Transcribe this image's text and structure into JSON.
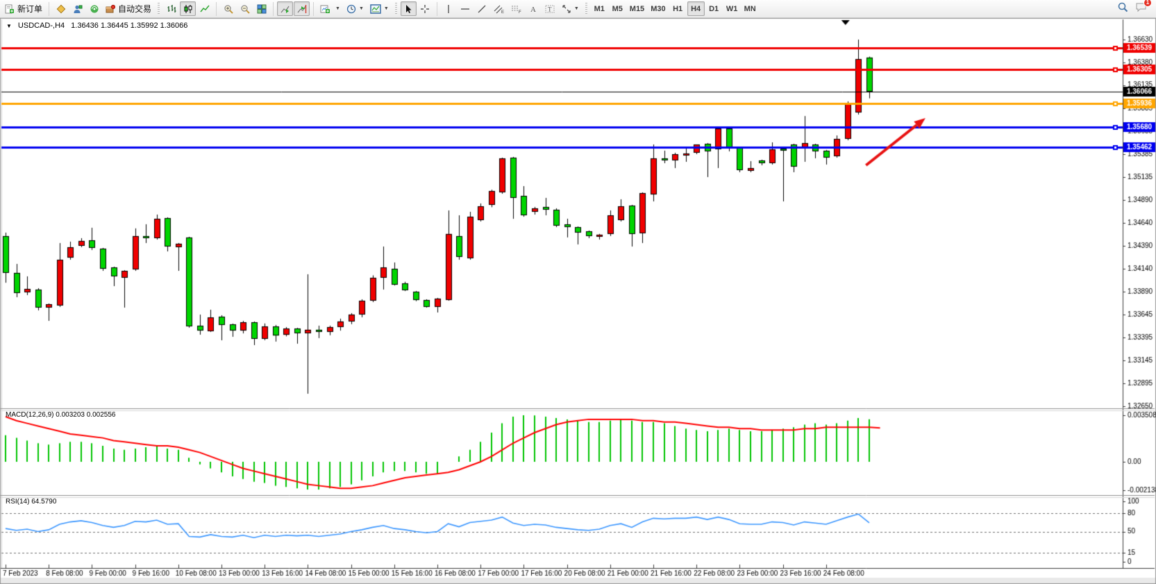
{
  "toolbar": {
    "new_order_label": "新订单",
    "autotrading_label": "自动交易",
    "timeframes": [
      "M1",
      "M5",
      "M15",
      "M30",
      "H1",
      "H4",
      "D1",
      "W1",
      "MN"
    ],
    "active_timeframe": "H4",
    "notification_count": "1",
    "icon_names": [
      "new-order-icon",
      "market-watch-icon",
      "profile-icon",
      "signals-icon",
      "autotrading-icon",
      "bar-chart-icon",
      "candlestick-chart-icon",
      "line-chart-icon",
      "zoom-in-icon",
      "zoom-out-icon",
      "tile-windows-icon",
      "auto-scroll-icon",
      "chart-shift-icon",
      "new-chart-icon",
      "periods-icon",
      "templates-icon",
      "cursor-icon",
      "crosshair-icon",
      "vertical-line-icon",
      "horizontal-line-icon",
      "trendline-icon",
      "channel-icon",
      "fibonacci-icon",
      "text-icon",
      "label-icon",
      "arrows-icon",
      "search-icon",
      "chat-icon"
    ]
  },
  "chart": {
    "title": "USDCAD-,H4",
    "ohlc_text": "1.36436 1.36445 1.35992 1.36066"
  },
  "macd": {
    "header": "MACD(12,26,9) 0.003203 0.002556"
  },
  "rsi": {
    "header": "RSI(14) 64.5790"
  },
  "chart_data": {
    "type": "candlestick",
    "symbol": "USDCAD-",
    "timeframe": "H4",
    "title": "USDCAD-,H4 1.36436 1.36445 1.35992 1.36066",
    "current_bar": {
      "open": 1.36436,
      "high": 1.36445,
      "low": 1.35992,
      "close": 1.36066
    },
    "ylim": [
      1.32634,
      1.36728
    ],
    "price_ticks": [
      1.3663,
      1.3638,
      1.36135,
      1.35885,
      1.35635,
      1.35385,
      1.35135,
      1.3489,
      1.3464,
      1.3439,
      1.3414,
      1.3389,
      1.33645,
      1.33395,
      1.33145,
      1.32895,
      1.3265
    ],
    "x_labels": [
      "7 Feb 2023",
      "8 Feb 08:00",
      "9 Feb 00:00",
      "9 Feb 16:00",
      "10 Feb 08:00",
      "13 Feb 00:00",
      "13 Feb 16:00",
      "14 Feb 08:00",
      "15 Feb 00:00",
      "15 Feb 16:00",
      "16 Feb 08:00",
      "17 Feb 00:00",
      "17 Feb 16:00",
      "20 Feb 08:00",
      "21 Feb 00:00",
      "21 Feb 16:00",
      "22 Feb 08:00",
      "23 Feb 00:00",
      "23 Feb 16:00",
      "24 Feb 08:00"
    ],
    "b极ars_per_label": 4,
    "bars_per_label": 4,
    "colors": {
      "bull": "#f00000",
      "bear": "#00d500",
      "outline": "#000000",
      "macd_hist": "#00c400",
      "macd_signal": "#ff0000",
      "rsi_line": "#3a96ff",
      "arrow": "#e81212"
    },
    "hlines": [
      {
        "price": 1.36539,
        "color": "#f00000",
        "width": 3,
        "current": false
      },
      {
        "price": 1.36305,
        "color": "#f00000",
        "width": 3,
        "current": false
      },
      {
        "price": 1.36066,
        "color": "#000000",
        "width": 1,
        "current": true
      },
      {
        "price": 1.35936,
        "color": "#ffa500",
        "width": 3,
        "current": false
      },
      {
        "price": 1.3568,
        "color": "#0000f0",
        "width": 3,
        "current": false
      },
      {
        "price": 1.35462,
        "color": "#0000f0",
        "width": 3,
        "current": false
      }
    ],
    "shift_marker_bar": 77.8,
    "arrow_annotation": {
      "x1_bar": 79.7,
      "y1_price": 1.35265,
      "x2_bar": 85.2,
      "y2_price": 1.35778
    },
    "candles": [
      [
        1.34497,
        1.34534,
        1.3399,
        1.34097
      ],
      [
        1.34097,
        1.34194,
        1.33833,
        1.33878
      ],
      [
        1.33886,
        1.34059,
        1.33856,
        1.33923
      ],
      [
        1.33916,
        1.33931,
        1.3369,
        1.3372
      ],
      [
        1.3372,
        1.33765,
        1.33576,
        1.33757
      ],
      [
        1.33742,
        1.34421,
        1.33727,
        1.3424
      ],
      [
        1.34262,
        1.34436,
        1.3424,
        1.34376
      ],
      [
        1.34391,
        1.34474,
        1.34376,
        1.34444
      ],
      [
        1.34451,
        1.34587,
        1.34345,
        1.34368
      ],
      [
        1.3436,
        1.34368,
        1.34119,
        1.34141
      ],
      [
        1.34156,
        1.34164,
        1.33953,
        1.34059
      ],
      [
        1.34044,
        1.34126,
        1.3372,
        1.34119
      ],
      [
        1.34134,
        1.3458,
        1.34119,
        1.34497
      ],
      [
        1.34497,
        1.34625,
        1.34421,
        1.34474
      ],
      [
        1.34474,
        1.3473,
        1.34459,
        1.34684
      ],
      [
        1.34692,
        1.347,
        1.3433,
        1.34383
      ],
      [
        1.34376,
        1.34421,
        1.34119,
        1.34414
      ],
      [
        1.34482,
        1.34489,
        1.33502,
        1.33517
      ],
      [
        1.33524,
        1.33644,
        1.33426,
        1.3347
      ],
      [
        1.33463,
        1.33697,
        1.33456,
        1.33614
      ],
      [
        1.33622,
        1.33637,
        1.33365,
        1.33531
      ],
      [
        1.33539,
        1.33546,
        1.33403,
        1.3347
      ],
      [
        1.3347,
        1.33576,
        1.3344,
        1.33561
      ],
      [
        1.33561,
        1.33569,
        1.33313,
        1.33381
      ],
      [
        1.33381,
        1.33548,
        1.33366,
        1.33513
      ],
      [
        1.33513,
        1.33531,
        1.33351,
        1.33416
      ],
      [
        1.33424,
        1.33508,
        1.33408,
        1.33492
      ],
      [
        1.33492,
        1.335,
        1.33328,
        1.33441
      ],
      [
        1.33445,
        1.34082,
        1.32785,
        1.3348
      ],
      [
        1.3348,
        1.33524,
        1.33389,
        1.33456
      ],
      [
        1.33456,
        1.33524,
        1.3342,
        1.33509
      ],
      [
        1.33509,
        1.336,
        1.3347,
        1.3357
      ],
      [
        1.3357,
        1.3366,
        1.3354,
        1.33645
      ],
      [
        1.33645,
        1.3381,
        1.33615,
        1.33795
      ],
      [
        1.33795,
        1.3407,
        1.3378,
        1.34044
      ],
      [
        1.34044,
        1.34383,
        1.33916,
        1.34157
      ],
      [
        1.34141,
        1.3421,
        1.3396,
        1.33968
      ],
      [
        1.33984,
        1.34,
        1.339,
        1.33908
      ],
      [
        1.33893,
        1.339,
        1.3379,
        1.33802
      ],
      [
        1.33802,
        1.3381,
        1.3372,
        1.33727
      ],
      [
        1.33727,
        1.33825,
        1.33667,
        1.33818
      ],
      [
        1.33802,
        1.34775,
        1.33795,
        1.3452
      ],
      [
        1.34497,
        1.34722,
        1.3424,
        1.3427
      ],
      [
        1.34255,
        1.3476,
        1.3424,
        1.34707
      ],
      [
        1.3467,
        1.34851,
        1.34655,
        1.3482
      ],
      [
        1.34835,
        1.35,
        1.3481,
        1.34986
      ],
      [
        1.34971,
        1.35348,
        1.34956,
        1.35341
      ],
      [
        1.35348,
        1.35356,
        1.34684,
        1.34911
      ],
      [
        1.34933,
        1.35039,
        1.34707,
        1.34722
      ],
      [
        1.3476,
        1.34813,
        1.3473,
        1.34798
      ],
      [
        1.34813,
        1.34911,
        1.34722,
        1.34783
      ],
      [
        1.34783,
        1.34798,
        1.34594,
        1.34609
      ],
      [
        1.34624,
        1.34685,
        1.34482,
        1.34594
      ],
      [
        1.34594,
        1.34601,
        1.34406,
        1.34534
      ],
      [
        1.34549,
        1.34557,
        1.34474,
        1.34497
      ],
      [
        1.34489,
        1.3452,
        1.34459,
        1.34512
      ],
      [
        1.34519,
        1.34775,
        1.34497,
        1.34722
      ],
      [
        1.3467,
        1.34896,
        1.34655,
        1.3482
      ],
      [
        1.34828,
        1.34835,
        1.34383,
        1.34519
      ],
      [
        1.34527,
        1.34971,
        1.34421,
        1.34963
      ],
      [
        1.34948,
        1.35491,
        1.34873,
        1.35341
      ],
      [
        1.35341,
        1.35424,
        1.35288,
        1.35318
      ],
      [
        1.35318,
        1.35401,
        1.35235,
        1.35386
      ],
      [
        1.35371,
        1.35461,
        1.35303,
        1.35394
      ],
      [
        1.35401,
        1.35484,
        1.35386,
        1.35491
      ],
      [
        1.35499,
        1.35506,
        1.35137,
        1.35416
      ],
      [
        1.35439,
        1.35672,
        1.35235,
        1.35665
      ],
      [
        1.35665,
        1.35672,
        1.35416,
        1.35461
      ],
      [
        1.35454,
        1.35461,
        1.3519,
        1.35213
      ],
      [
        1.35205,
        1.3531,
        1.3519,
        1.35235
      ],
      [
        1.35318,
        1.35326,
        1.35265,
        1.35288
      ],
      [
        1.35288,
        1.35514,
        1.35273,
        1.35439
      ],
      [
        1.35446,
        1.35469,
        1.34873,
        1.35424
      ],
      [
        1.35491,
        1.35499,
        1.3519,
        1.3525
      ],
      [
        1.35454,
        1.358,
        1.35303,
        1.35506
      ],
      [
        1.35491,
        1.35499,
        1.35341,
        1.35416
      ],
      [
        1.35423,
        1.35431,
        1.35273,
        1.35348
      ],
      [
        1.35363,
        1.35589,
        1.35348,
        1.35552
      ],
      [
        1.35552,
        1.35959,
        1.35537,
        1.35929
      ],
      [
        1.35838,
        1.3663,
        1.35816,
        1.36419
      ],
      [
        1.36436,
        1.36445,
        1.35992,
        1.36066
      ]
    ],
    "macd": {
      "name": "MACD(12,26,9)",
      "value_main": 0.003203,
      "value_signal": 0.002556,
      "unit": 0.0001,
      "axis_ticks": [
        {
          "v": 0.003508,
          "label": "0.003508"
        },
        {
          "v": 0,
          "label": "0.00"
        },
        {
          "v": -0.002138,
          "label": "-0.002138"
        }
      ],
      "histogram": [
        20,
        18,
        16,
        14,
        13,
        14,
        15,
        15,
        14,
        12,
        10,
        9,
        10,
        11,
        12,
        10,
        9,
        3,
        -2,
        -5,
        -8,
        -11,
        -13,
        -15,
        -16,
        -18,
        -19,
        -20,
        -21,
        -21,
        -20,
        -19,
        -17,
        -14,
        -11,
        -8,
        -7,
        -7,
        -8,
        -9,
        -9,
        0,
        4,
        9,
        15,
        22,
        29,
        34,
        35.08,
        35,
        34,
        33,
        32,
        31,
        30,
        30,
        31,
        32,
        31,
        30,
        30,
        29,
        27,
        25,
        24,
        23,
        24,
        25,
        24,
        23,
        23,
        24,
        25,
        26,
        28,
        29,
        28,
        29,
        31,
        33,
        32.03
      ],
      "signal": [
        34,
        31,
        29,
        27,
        25,
        23,
        21,
        20,
        19,
        18,
        16,
        15,
        14,
        13,
        12,
        12,
        11,
        9,
        7,
        4,
        1,
        -2,
        -5,
        -7,
        -9,
        -11,
        -13,
        -15,
        -17,
        -18,
        -19,
        -20,
        -20,
        -19,
        -18,
        -16,
        -14,
        -12,
        -11,
        -10,
        -9,
        -8,
        -6,
        -3,
        0,
        4,
        9,
        14,
        18,
        22,
        25,
        28,
        30,
        31,
        32,
        32,
        32,
        32,
        32,
        31,
        31,
        30,
        30,
        29,
        28,
        27,
        26,
        26,
        25,
        25,
        24,
        24,
        24,
        24,
        25,
        25,
        26,
        26,
        26,
        26,
        26,
        25.56
      ]
    },
    "rsi": {
      "name": "RSI(14)",
      "value": 64.579,
      "levels": [
        100,
        80,
        50,
        15,
        0
      ],
      "dashed_levels": [
        80,
        50,
        15
      ],
      "values": [
        55,
        52,
        54,
        50,
        53,
        62,
        66,
        68,
        65,
        60,
        57,
        60,
        67,
        66,
        69,
        62,
        63,
        42,
        41,
        45,
        42,
        41,
        44,
        40,
        44,
        42,
        44,
        43,
        44,
        42,
        44,
        46,
        50,
        53,
        57,
        60,
        55,
        53,
        50,
        48,
        50,
        63,
        58,
        65,
        67,
        69,
        74,
        64,
        60,
        62,
        61,
        57,
        55,
        53,
        52,
        54,
        60,
        63,
        57,
        66,
        72,
        71,
        72,
        72,
        74,
        70,
        74,
        70,
        63,
        62,
        62,
        66,
        65,
        61,
        66,
        64,
        62,
        68,
        74,
        79,
        64.58
      ]
    }
  }
}
